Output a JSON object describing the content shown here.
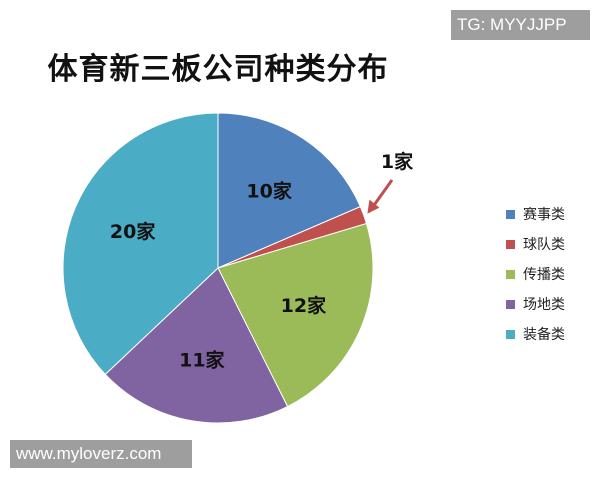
{
  "watermarks": {
    "top_right": "TG: MYYJJPP",
    "bottom_left": "www.myloverz.com"
  },
  "chart_data": {
    "type": "pie",
    "title": "体育新三板公司种类分布",
    "categories": [
      "赛事类",
      "球队类",
      "传播类",
      "场地类",
      "装备类"
    ],
    "values": [
      10,
      1,
      12,
      11,
      20
    ],
    "data_labels": [
      "10家",
      "1家",
      "12家",
      "11家",
      "20家"
    ],
    "colors": [
      "#4F81BD",
      "#C0504D",
      "#9BBB59",
      "#8064A2",
      "#4BACC6"
    ],
    "start_angle": "12 o'clock",
    "direction": "clockwise",
    "legend_position": "right",
    "arrow_color": "#C0504D"
  }
}
